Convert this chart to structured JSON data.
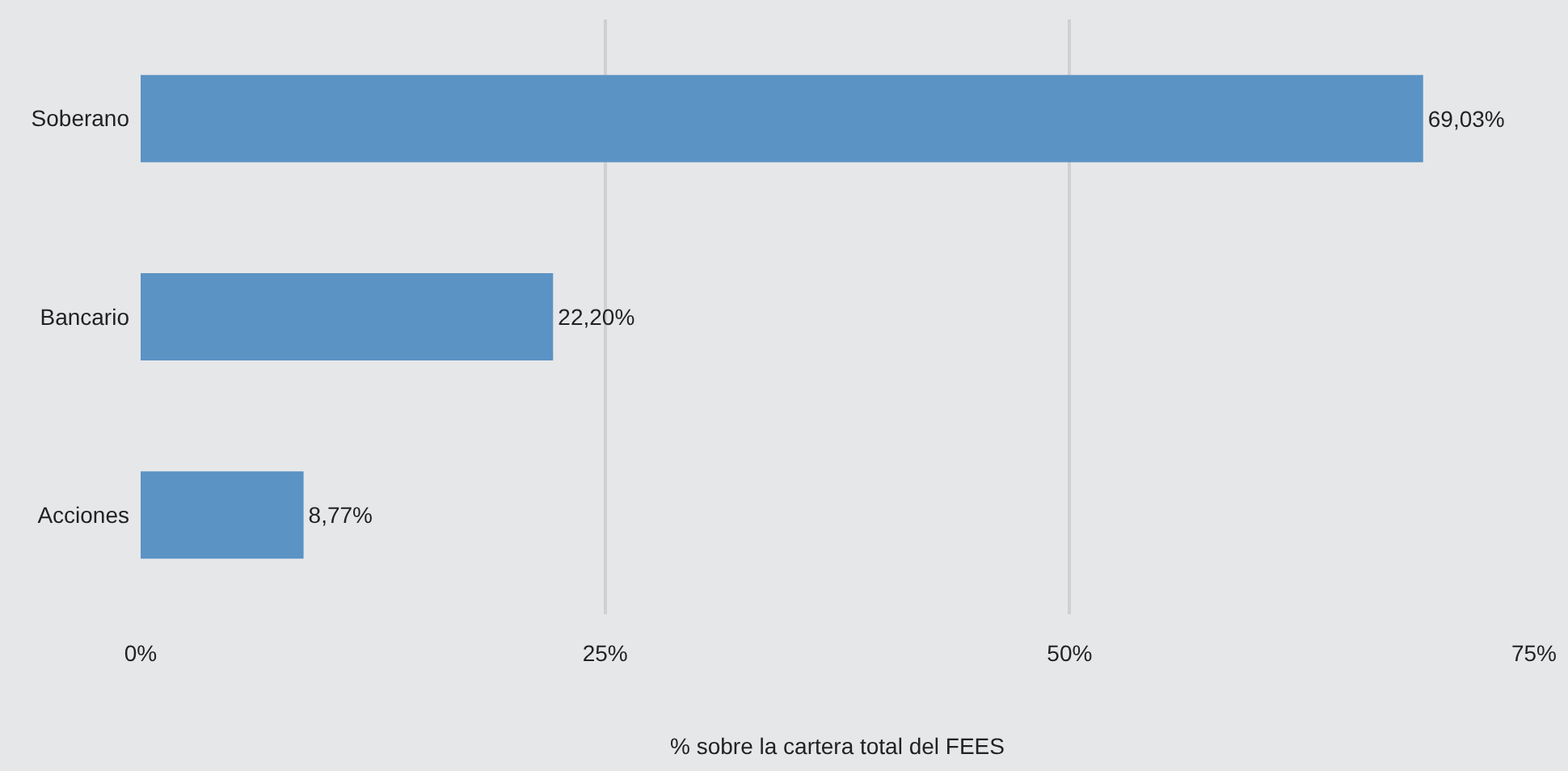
{
  "chart_data": {
    "type": "bar",
    "orientation": "horizontal",
    "categories": [
      "Soberano",
      "Bancario",
      "Acciones"
    ],
    "values": [
      69.03,
      22.2,
      8.77
    ],
    "color": "#5b93c5",
    "value_labels": [
      "69,03%",
      "22,20%",
      "8,77%"
    ],
    "xlabel": "% sobre la cartera total del FEES",
    "xlim": [
      0,
      75
    ],
    "xticks": [
      {
        "value": 0,
        "label": "0%"
      },
      {
        "value": 25,
        "label": "25%"
      },
      {
        "value": 50,
        "label": "50%"
      },
      {
        "value": 75,
        "label": "75%"
      }
    ],
    "grid": "x",
    "legend": false
  }
}
